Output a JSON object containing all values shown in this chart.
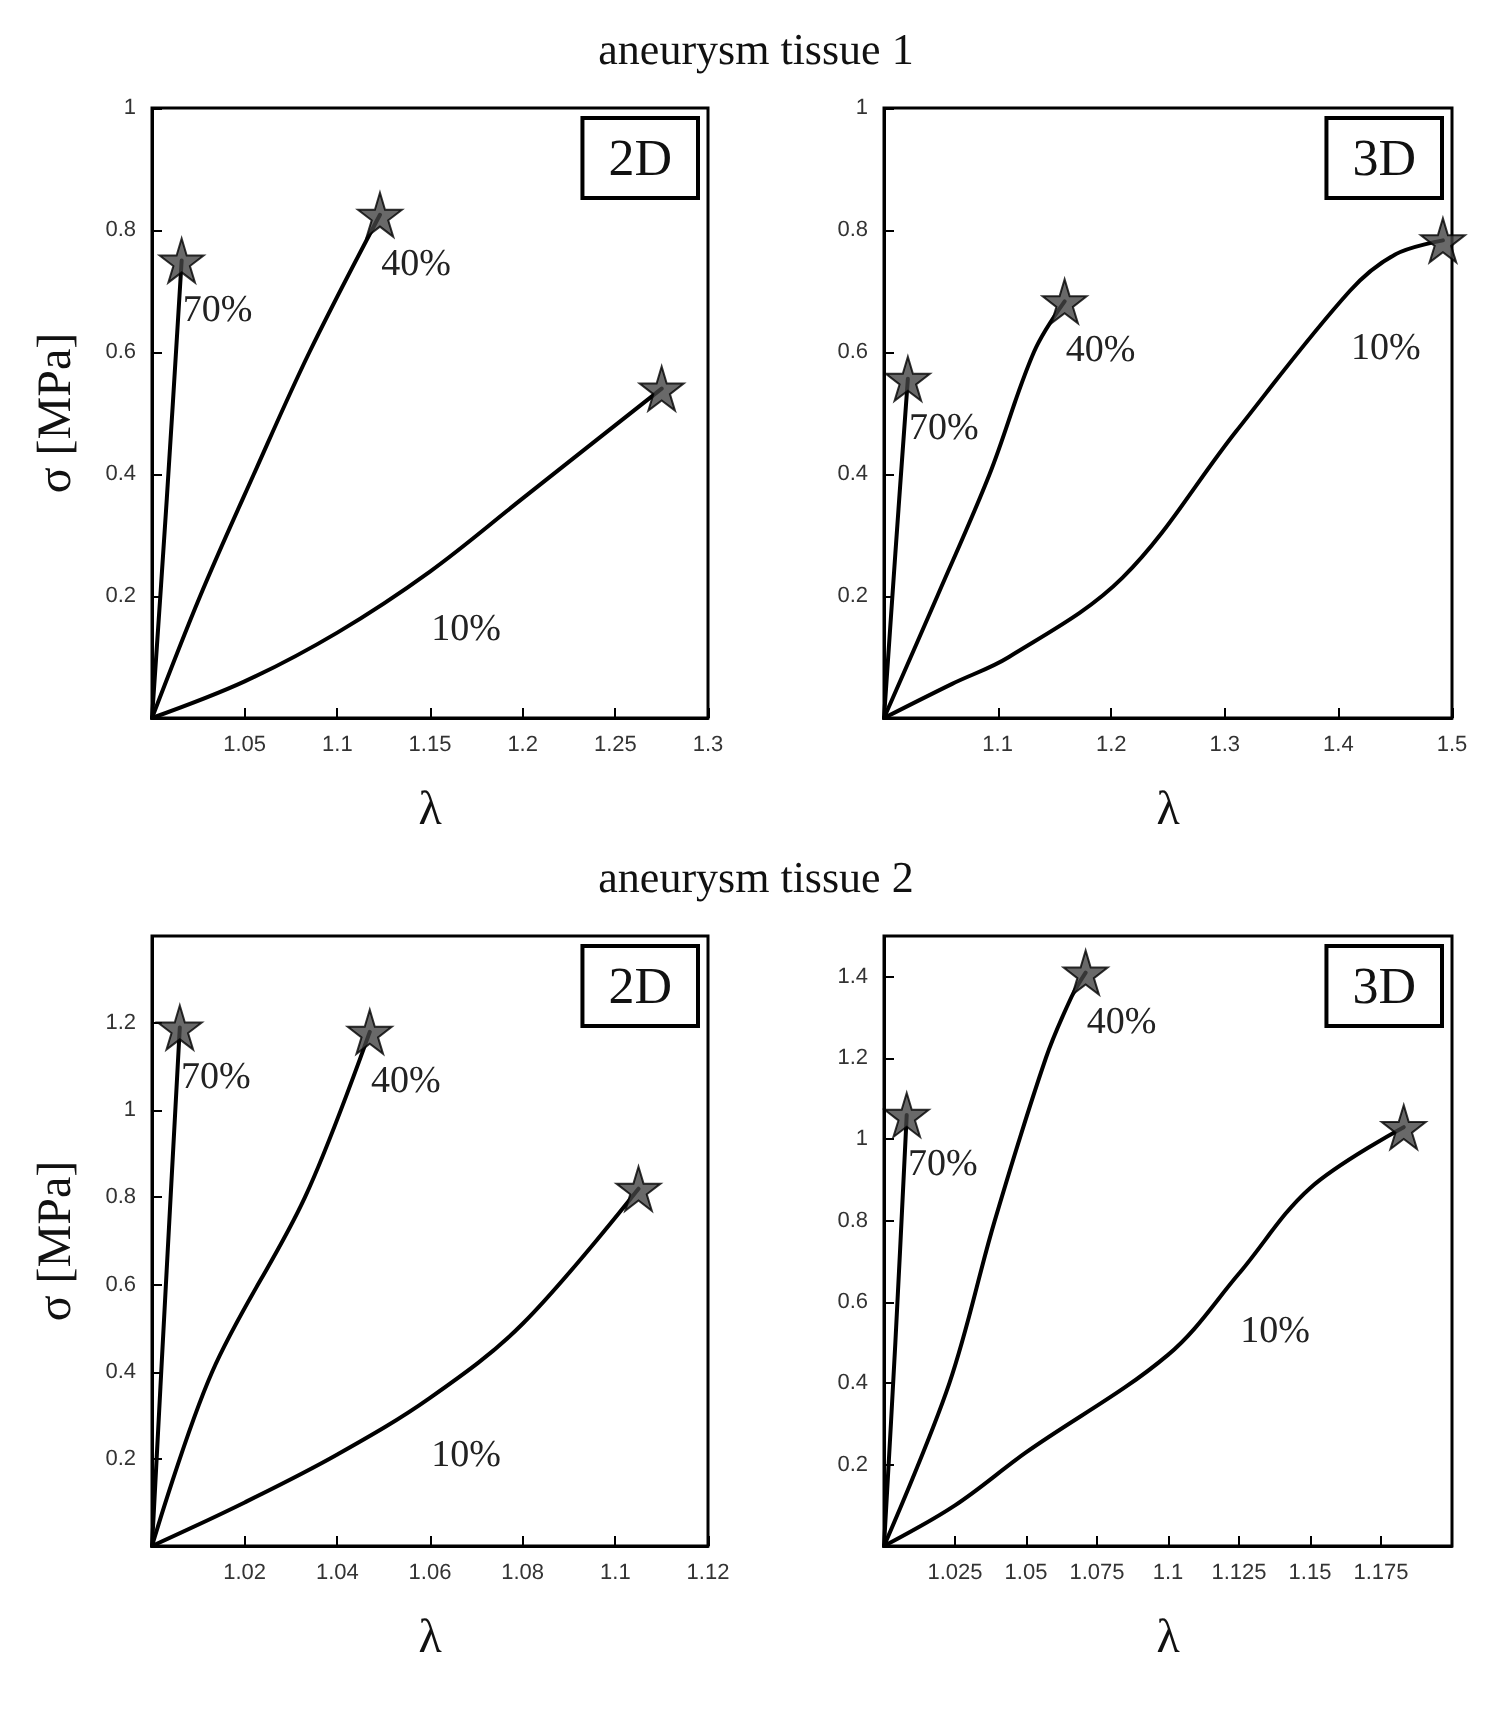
{
  "chart_data": [
    {
      "type": "line",
      "title": "aneurysm tissue 1",
      "annotations": [
        "2D"
      ],
      "xlabel": "λ",
      "ylabel": "σ [MPa]",
      "xlim": [
        1,
        1.3
      ],
      "ylim": [
        0,
        1
      ],
      "xticks": [
        1.05,
        1.1,
        1.15,
        1.2,
        1.25,
        1.3
      ],
      "yticks": [
        0.2,
        0.4,
        0.6,
        0.8,
        1
      ],
      "grid": false,
      "line_style": "solid",
      "series": [
        {
          "name": "70%",
          "color": "#000000",
          "x": [
            1,
            1.008,
            1.016
          ],
          "values": [
            0,
            0.36,
            0.75
          ]
        },
        {
          "name": "40%",
          "color": "#000000",
          "x": [
            1,
            1.026,
            1.055,
            1.085,
            1.123
          ],
          "values": [
            0,
            0.2,
            0.4,
            0.6,
            0.825
          ]
        },
        {
          "name": "10%",
          "color": "#000000",
          "x": [
            1,
            1.05,
            1.1,
            1.15,
            1.2,
            1.275
          ],
          "values": [
            0,
            0.06,
            0.14,
            0.24,
            0.36,
            0.54
          ]
        },
        {
          "type": "scatter",
          "marker": "star",
          "color": "#444444",
          "x": [
            1.016,
            1.123,
            1.275
          ],
          "values": [
            0.75,
            0.825,
            0.54
          ]
        }
      ]
    },
    {
      "type": "line",
      "annotations": [
        "3D"
      ],
      "xlabel": "λ",
      "xlim": [
        1,
        1.5
      ],
      "ylim": [
        0,
        1
      ],
      "xticks": [
        1.1,
        1.2,
        1.3,
        1.4,
        1.5
      ],
      "yticks": [
        0.2,
        0.4,
        0.6,
        0.8,
        1
      ],
      "grid": false,
      "line_style": "solid",
      "series": [
        {
          "name": "70%",
          "color": "#000000",
          "x": [
            1,
            1.01,
            1.021
          ],
          "values": [
            0,
            0.27,
            0.556
          ]
        },
        {
          "name": "40%",
          "color": "#000000",
          "x": [
            1,
            1.047,
            1.093,
            1.132,
            1.159
          ],
          "values": [
            0,
            0.2,
            0.4,
            0.6,
            0.683
          ]
        },
        {
          "name": "10%",
          "color": "#000000",
          "x": [
            1,
            1.06,
            1.11,
            1.21,
            1.31,
            1.41,
            1.45,
            1.492
          ],
          "values": [
            0,
            0.056,
            0.1,
            0.23,
            0.47,
            0.7,
            0.76,
            0.783
          ]
        },
        {
          "type": "scatter",
          "marker": "star",
          "color": "#444444",
          "x": [
            1.021,
            1.159,
            1.492
          ],
          "values": [
            0.556,
            0.683,
            0.783
          ]
        }
      ]
    },
    {
      "type": "line",
      "title": "aneurysm tissue 2",
      "annotations": [
        "2D"
      ],
      "xlabel": "λ",
      "ylabel": "σ [MPa]",
      "xlim": [
        1,
        1.12
      ],
      "ylim": [
        0,
        1.4
      ],
      "xticks": [
        1.02,
        1.04,
        1.06,
        1.08,
        1.1,
        1.12
      ],
      "yticks": [
        0.2,
        0.4,
        0.6,
        0.8,
        1,
        1.2
      ],
      "grid": false,
      "line_style": "solid",
      "series": [
        {
          "name": "70%",
          "color": "#000000",
          "x": [
            1,
            1.003,
            1.006
          ],
          "values": [
            0,
            0.6,
            1.19
          ]
        },
        {
          "name": "40%",
          "color": "#000000",
          "x": [
            1,
            1.013,
            1.033,
            1.047
          ],
          "values": [
            0,
            0.4,
            0.8,
            1.18
          ]
        },
        {
          "name": "10%",
          "color": "#000000",
          "x": [
            1,
            1.02,
            1.04,
            1.06,
            1.08,
            1.105
          ],
          "values": [
            0,
            0.1,
            0.21,
            0.34,
            0.51,
            0.82
          ]
        },
        {
          "type": "scatter",
          "marker": "star",
          "color": "#444444",
          "x": [
            1.006,
            1.047,
            1.105
          ],
          "values": [
            1.19,
            1.18,
            0.82
          ]
        }
      ]
    },
    {
      "type": "line",
      "annotations": [
        "3D"
      ],
      "xlabel": "λ",
      "xlim": [
        1,
        1.2
      ],
      "ylim": [
        0,
        1.5
      ],
      "xticks": [
        1.025,
        1.05,
        1.075,
        1.1,
        1.125,
        1.15,
        1.175
      ],
      "yticks": [
        0.2,
        0.4,
        0.6,
        0.8,
        1,
        1.2,
        1.4
      ],
      "grid": false,
      "line_style": "solid",
      "series": [
        {
          "name": "70%",
          "color": "#000000",
          "x": [
            1,
            1.004,
            1.008
          ],
          "values": [
            0,
            0.5,
            1.06
          ]
        },
        {
          "name": "40%",
          "color": "#000000",
          "x": [
            1,
            1.023,
            1.039,
            1.057,
            1.066,
            1.071
          ],
          "values": [
            0,
            0.4,
            0.8,
            1.2,
            1.35,
            1.41
          ]
        },
        {
          "name": "10%",
          "color": "#000000",
          "x": [
            1,
            1.025,
            1.05,
            1.1,
            1.125,
            1.15,
            1.183
          ],
          "values": [
            0,
            0.1,
            0.23,
            0.47,
            0.67,
            0.88,
            1.03
          ]
        },
        {
          "type": "scatter",
          "marker": "star",
          "color": "#444444",
          "x": [
            1.008,
            1.071,
            1.183
          ],
          "values": [
            1.06,
            1.41,
            1.03
          ]
        }
      ]
    }
  ]
}
